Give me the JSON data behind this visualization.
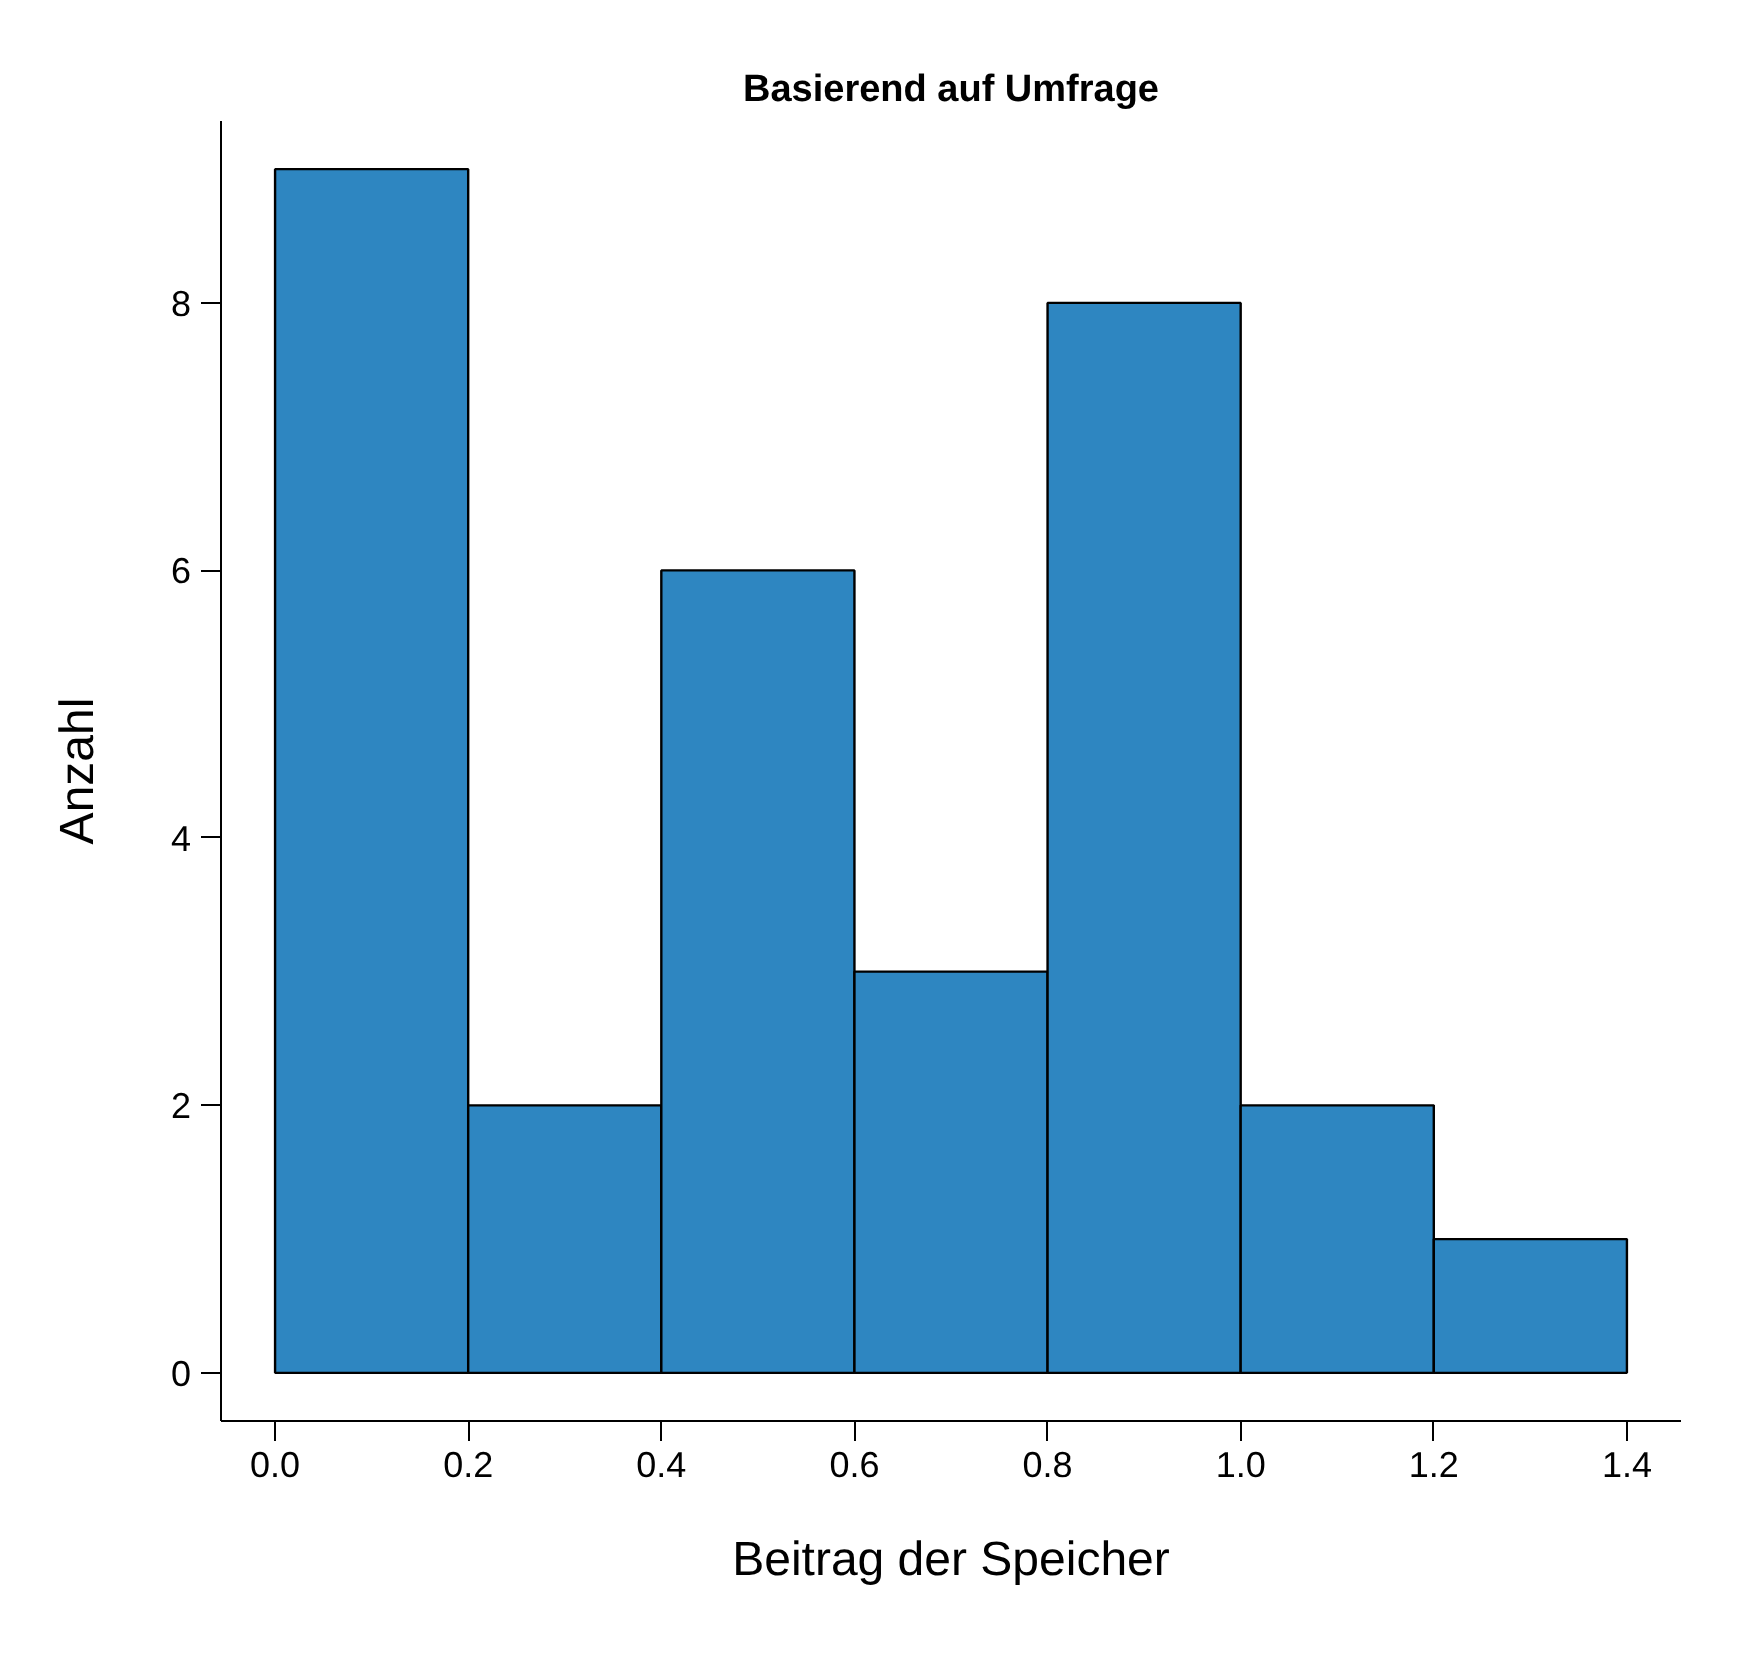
{
  "chart_data": {
    "type": "histogram",
    "title": "Basierend auf Umfrage",
    "xlabel": "Beitrag der Speicher",
    "ylabel": "Anzahl",
    "bins": [
      0.0,
      0.2,
      0.4,
      0.6,
      0.8,
      1.0,
      1.2,
      1.4
    ],
    "values": [
      9,
      2,
      6,
      3,
      8,
      2,
      1
    ],
    "color": "#2e86c1",
    "xlim": [
      -0.056,
      1.456
    ],
    "ylim": [
      -0.36,
      9.36
    ],
    "xticks": [
      {
        "value": 0.0,
        "label": "0.0"
      },
      0.2,
      0.4,
      0.6,
      0.8,
      {
        "value": 1.0,
        "label": "1.0"
      },
      1.2,
      1.4
    ],
    "yticks": [
      0,
      2,
      4,
      6,
      8
    ],
    "grid": false
  }
}
